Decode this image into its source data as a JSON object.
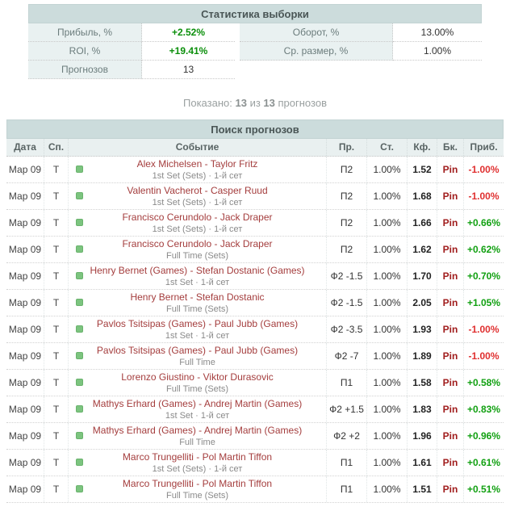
{
  "stats": {
    "title": "Статистика выборки",
    "left": [
      {
        "label": "Прибыль, %",
        "value": "+2.52%",
        "highlight": true
      },
      {
        "label": "ROI, %",
        "value": "+19.41%",
        "highlight": true
      },
      {
        "label": "Прогнозов",
        "value": "13",
        "highlight": false
      }
    ],
    "right": [
      {
        "label": "Оборот, %",
        "value": "13.00%",
        "highlight": false
      },
      {
        "label": "Ср. размер, %",
        "value": "1.00%",
        "highlight": false
      }
    ]
  },
  "shown_line": {
    "prefix": "Показано:",
    "shown": "13",
    "of_word": "из",
    "total": "13",
    "suffix": "прогнозов"
  },
  "table": {
    "title": "Поиск прогнозов",
    "columns": {
      "date": "Дата",
      "sport": "Сп.",
      "event": "Событие",
      "pick": "Пр.",
      "stake": "Ст.",
      "odds": "Кф.",
      "book": "Бк.",
      "profit": "Приб."
    },
    "rows": [
      {
        "date": "Мар 09",
        "sport": "Т",
        "event": "Alex Michelsen - Taylor Fritz",
        "detail": "1st Set (Sets) · 1-й сет",
        "pick": "П2",
        "stake": "1.00%",
        "odds": "1.52",
        "book": "Pin",
        "profit": "-1.00%"
      },
      {
        "date": "Мар 09",
        "sport": "Т",
        "event": "Valentin Vacherot - Casper Ruud",
        "detail": "1st Set (Sets) · 1-й сет",
        "pick": "П2",
        "stake": "1.00%",
        "odds": "1.68",
        "book": "Pin",
        "profit": "-1.00%"
      },
      {
        "date": "Мар 09",
        "sport": "Т",
        "event": "Francisco Cerundolo - Jack Draper",
        "detail": "1st Set (Sets) · 1-й сет",
        "pick": "П2",
        "stake": "1.00%",
        "odds": "1.66",
        "book": "Pin",
        "profit": "+0.66%"
      },
      {
        "date": "Мар 09",
        "sport": "Т",
        "event": "Francisco Cerundolo - Jack Draper",
        "detail": "Full Time (Sets)",
        "pick": "П2",
        "stake": "1.00%",
        "odds": "1.62",
        "book": "Pin",
        "profit": "+0.62%"
      },
      {
        "date": "Мар 09",
        "sport": "Т",
        "event": "Henry Bernet (Games) - Stefan Dostanic (Games)",
        "detail": "1st Set · 1-й сет",
        "pick": "Ф2 -1.5",
        "stake": "1.00%",
        "odds": "1.70",
        "book": "Pin",
        "profit": "+0.70%"
      },
      {
        "date": "Мар 09",
        "sport": "Т",
        "event": "Henry Bernet - Stefan Dostanic",
        "detail": "Full Time (Sets)",
        "pick": "Ф2 -1.5",
        "stake": "1.00%",
        "odds": "2.05",
        "book": "Pin",
        "profit": "+1.05%"
      },
      {
        "date": "Мар 09",
        "sport": "Т",
        "event": "Pavlos Tsitsipas (Games) - Paul Jubb (Games)",
        "detail": "1st Set · 1-й сет",
        "pick": "Ф2 -3.5",
        "stake": "1.00%",
        "odds": "1.93",
        "book": "Pin",
        "profit": "-1.00%"
      },
      {
        "date": "Мар 09",
        "sport": "Т",
        "event": "Pavlos Tsitsipas (Games) - Paul Jubb (Games)",
        "detail": "Full Time",
        "pick": "Ф2 -7",
        "stake": "1.00%",
        "odds": "1.89",
        "book": "Pin",
        "profit": "-1.00%"
      },
      {
        "date": "Мар 09",
        "sport": "Т",
        "event": "Lorenzo Giustino - Viktor Durasovic",
        "detail": "Full Time (Sets)",
        "pick": "П1",
        "stake": "1.00%",
        "odds": "1.58",
        "book": "Pin",
        "profit": "+0.58%"
      },
      {
        "date": "Мар 09",
        "sport": "Т",
        "event": "Mathys Erhard (Games) - Andrej Martin (Games)",
        "detail": "1st Set · 1-й сет",
        "pick": "Ф2 +1.5",
        "stake": "1.00%",
        "odds": "1.83",
        "book": "Pin",
        "profit": "+0.83%"
      },
      {
        "date": "Мар 09",
        "sport": "Т",
        "event": "Mathys Erhard (Games) - Andrej Martin (Games)",
        "detail": "Full Time",
        "pick": "Ф2 +2",
        "stake": "1.00%",
        "odds": "1.96",
        "book": "Pin",
        "profit": "+0.96%"
      },
      {
        "date": "Мар 09",
        "sport": "Т",
        "event": "Marco Trungelliti - Pol Martin Tiffon",
        "detail": "1st Set (Sets) · 1-й сет",
        "pick": "П1",
        "stake": "1.00%",
        "odds": "1.61",
        "book": "Pin",
        "profit": "+0.61%"
      },
      {
        "date": "Мар 09",
        "sport": "Т",
        "event": "Marco Trungelliti - Pol Martin Tiffon",
        "detail": "Full Time (Sets)",
        "pick": "П1",
        "stake": "1.00%",
        "odds": "1.51",
        "book": "Pin",
        "profit": "+0.51%"
      }
    ]
  },
  "colors": {
    "section_header_bg": "#ccdcdc",
    "label_cell_bg": "#e9f1f1",
    "column_header_bg": "#e9f0f0",
    "event_link": "#a43d3d",
    "bookmaker_link": "#a01c1c",
    "profit_positive": "#11a011",
    "profit_negative": "#e03030",
    "stats_positive": "#0b8f0b",
    "sport_dot": "#7cc47f"
  }
}
